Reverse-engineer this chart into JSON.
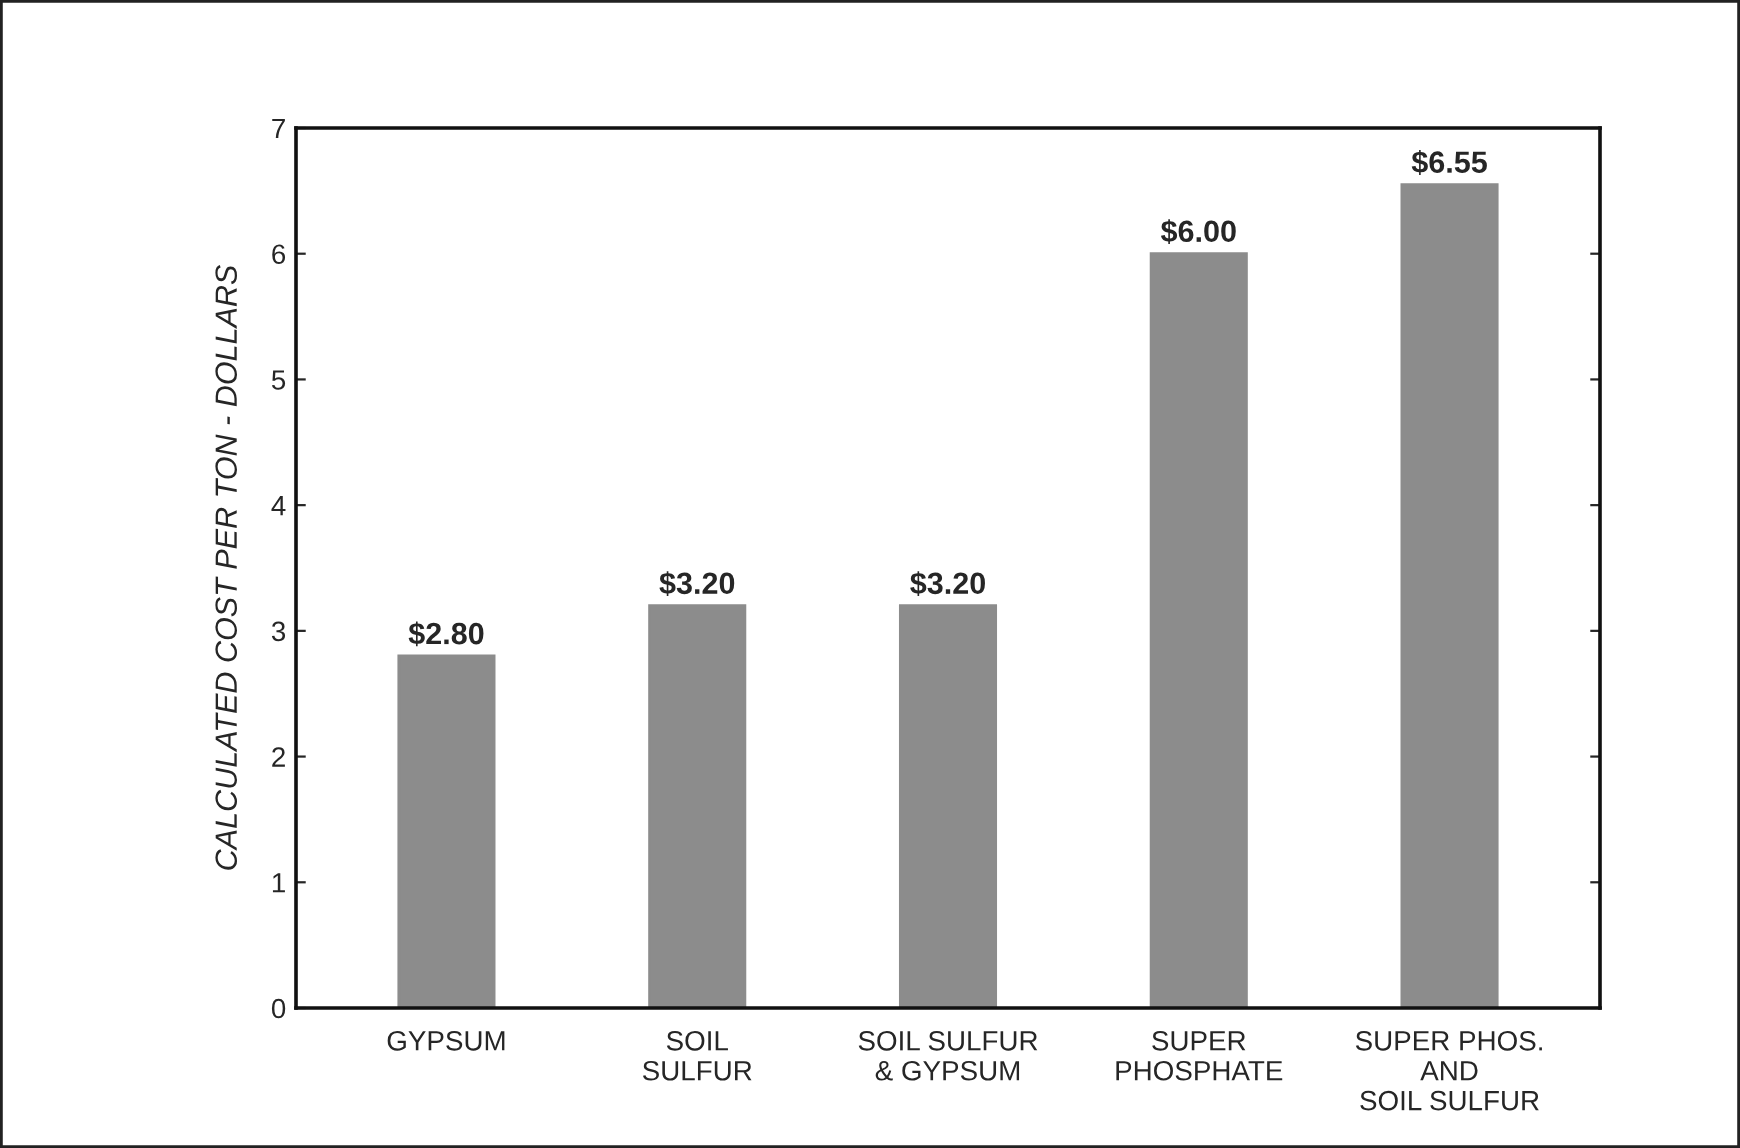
{
  "chart_data": {
    "type": "bar",
    "ylabel": "CALCULATED COST PER TON - DOLLARS",
    "categories": [
      "GYPSUM",
      "SOIL\nSULFUR",
      "SOIL SULFUR\n& GYPSUM",
      "SUPER\nPHOSPHATE",
      "SUPER PHOS.\nAND\nSOIL SULFUR"
    ],
    "values": [
      2.8,
      3.2,
      3.2,
      6.0,
      6.55
    ],
    "value_labels": [
      "$2.80",
      "$3.20",
      "$3.20",
      "$6.00",
      "$6.55"
    ],
    "color": "#8c8c8c",
    "ylim": [
      0,
      7
    ],
    "yticks": [
      0,
      1,
      2,
      3,
      4,
      5,
      6,
      7
    ],
    "grid": false,
    "legend": false
  }
}
